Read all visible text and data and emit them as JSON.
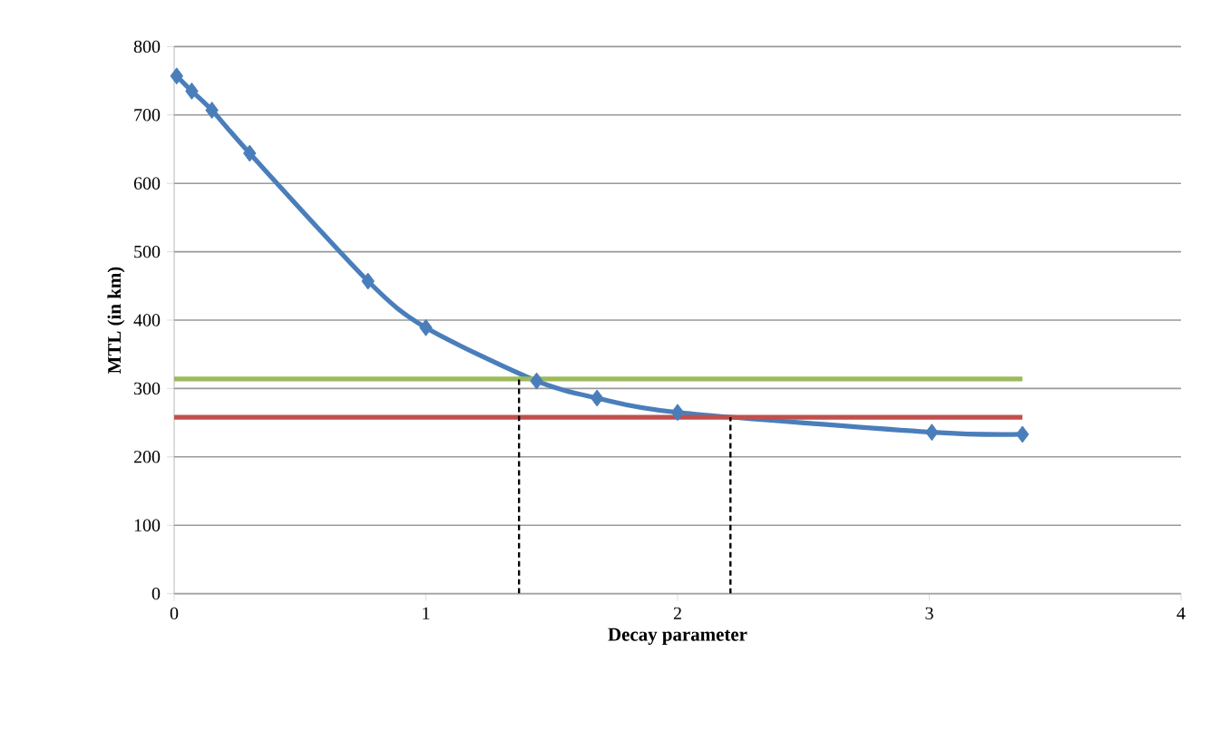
{
  "chart_data": {
    "type": "line",
    "xlabel": "Decay parameter",
    "ylabel": "MTL (in km)",
    "xlim": [
      0,
      4
    ],
    "xticks": [
      0,
      1,
      2,
      3,
      4
    ],
    "ylim": [
      0,
      800
    ],
    "yticks": [
      0,
      100,
      200,
      300,
      400,
      500,
      600,
      700,
      800
    ],
    "grid": "y",
    "series": [
      {
        "color": "#4a7ebb",
        "marker": "diamond",
        "line_style": "solid",
        "x": [
          0.01,
          0.07,
          0.15,
          0.3,
          0.77,
          1.0,
          1.44,
          1.68,
          2.0,
          3.01,
          3.37
        ],
        "values": [
          757,
          735,
          707,
          644,
          457,
          389,
          311,
          286,
          265,
          236,
          233
        ]
      },
      {
        "color": "#9bbb59",
        "marker": "none",
        "line_style": "solid",
        "x": [
          0,
          3.37
        ],
        "values": [
          314,
          314
        ]
      },
      {
        "color": "#c0504d",
        "marker": "none",
        "line_style": "solid",
        "x": [
          0,
          3.37
        ],
        "values": [
          258,
          258
        ]
      },
      {
        "color": "#000000",
        "marker": "none",
        "line_style": "dashed",
        "x": [
          1.37,
          1.37
        ],
        "values": [
          0,
          314
        ]
      },
      {
        "color": "#000000",
        "marker": "none",
        "line_style": "dashed",
        "x": [
          2.21,
          2.21
        ],
        "values": [
          0,
          258
        ]
      }
    ]
  }
}
